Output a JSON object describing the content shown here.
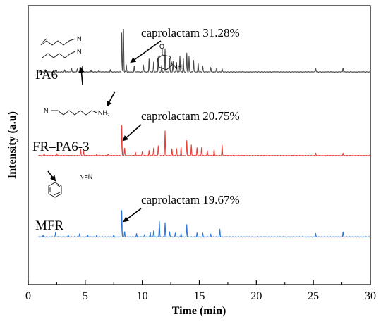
{
  "chart_data": {
    "type": "line",
    "xlabel": "Time (min)",
    "ylabel": "Intensity (a.u)",
    "xlim": [
      0,
      30
    ],
    "xticks": [
      0,
      5,
      10,
      15,
      20,
      25,
      30
    ],
    "grid": false,
    "legend": "none",
    "series": [
      {
        "name": "PA6",
        "color": "#4a4a4a",
        "baseline_level": 0.82,
        "peaks": [
          {
            "x": 1.5,
            "h": 0.3
          },
          {
            "x": 2.4,
            "h": 0.25
          },
          {
            "x": 3.2,
            "h": 0.3
          },
          {
            "x": 3.8,
            "h": 0.55
          },
          {
            "x": 4.3,
            "h": 0.5
          },
          {
            "x": 4.55,
            "h": 0.8
          },
          {
            "x": 4.75,
            "h": 0.9
          },
          {
            "x": 5.5,
            "h": 0.25
          },
          {
            "x": 6.2,
            "h": 0.3
          },
          {
            "x": 7.2,
            "h": 0.35
          },
          {
            "x": 8.2,
            "h": 6.0
          },
          {
            "x": 8.35,
            "h": 7.1
          },
          {
            "x": 8.6,
            "h": 1.1
          },
          {
            "x": 9.3,
            "h": 0.9
          },
          {
            "x": 10.1,
            "h": 1.1
          },
          {
            "x": 10.6,
            "h": 2.0
          },
          {
            "x": 11.0,
            "h": 1.5
          },
          {
            "x": 11.4,
            "h": 2.3
          },
          {
            "x": 11.7,
            "h": 1.0
          },
          {
            "x": 12.0,
            "h": 3.5
          },
          {
            "x": 12.4,
            "h": 2.0
          },
          {
            "x": 12.7,
            "h": 1.6
          },
          {
            "x": 13.0,
            "h": 1.5
          },
          {
            "x": 13.3,
            "h": 2.4
          },
          {
            "x": 13.6,
            "h": 2.0
          },
          {
            "x": 13.9,
            "h": 2.9
          },
          {
            "x": 14.1,
            "h": 2.3
          },
          {
            "x": 14.5,
            "h": 1.8
          },
          {
            "x": 14.9,
            "h": 1.3
          },
          {
            "x": 15.3,
            "h": 0.9
          },
          {
            "x": 16.0,
            "h": 0.7
          },
          {
            "x": 16.5,
            "h": 0.5
          },
          {
            "x": 17.0,
            "h": 0.5
          },
          {
            "x": 25.2,
            "h": 0.6
          },
          {
            "x": 27.6,
            "h": 0.6
          }
        ]
      },
      {
        "name": "FR–PA6-3",
        "color": "#e8403a",
        "baseline_level": 0.45,
        "peaks": [
          {
            "x": 1.4,
            "h": 0.25
          },
          {
            "x": 2.5,
            "h": 0.3
          },
          {
            "x": 4.6,
            "h": 0.9
          },
          {
            "x": 4.85,
            "h": 0.7
          },
          {
            "x": 6.0,
            "h": 0.2
          },
          {
            "x": 7.0,
            "h": 0.25
          },
          {
            "x": 8.2,
            "h": 4.6
          },
          {
            "x": 8.45,
            "h": 1.2
          },
          {
            "x": 9.4,
            "h": 0.5
          },
          {
            "x": 10.0,
            "h": 0.6
          },
          {
            "x": 10.6,
            "h": 0.8
          },
          {
            "x": 11.0,
            "h": 1.2
          },
          {
            "x": 11.4,
            "h": 1.5
          },
          {
            "x": 12.0,
            "h": 3.8
          },
          {
            "x": 12.6,
            "h": 1.0
          },
          {
            "x": 13.0,
            "h": 1.1
          },
          {
            "x": 13.4,
            "h": 1.3
          },
          {
            "x": 13.9,
            "h": 2.3
          },
          {
            "x": 14.3,
            "h": 1.6
          },
          {
            "x": 14.8,
            "h": 1.2
          },
          {
            "x": 15.2,
            "h": 1.3
          },
          {
            "x": 15.7,
            "h": 0.8
          },
          {
            "x": 16.3,
            "h": 0.9
          },
          {
            "x": 17.0,
            "h": 1.6
          },
          {
            "x": 25.2,
            "h": 0.4
          },
          {
            "x": 27.6,
            "h": 0.4
          }
        ]
      },
      {
        "name": "MFR",
        "color": "#2f79d6",
        "baseline_level": 0.08,
        "peaks": [
          {
            "x": 1.3,
            "h": 0.25
          },
          {
            "x": 2.4,
            "h": 0.7
          },
          {
            "x": 3.5,
            "h": 0.3
          },
          {
            "x": 4.5,
            "h": 0.5
          },
          {
            "x": 5.2,
            "h": 0.3
          },
          {
            "x": 6.0,
            "h": 0.2
          },
          {
            "x": 7.5,
            "h": 0.3
          },
          {
            "x": 8.2,
            "h": 4.0
          },
          {
            "x": 8.45,
            "h": 0.8
          },
          {
            "x": 9.5,
            "h": 0.5
          },
          {
            "x": 10.2,
            "h": 0.4
          },
          {
            "x": 10.7,
            "h": 0.7
          },
          {
            "x": 11.0,
            "h": 1.0
          },
          {
            "x": 11.5,
            "h": 2.4
          },
          {
            "x": 12.0,
            "h": 2.2
          },
          {
            "x": 12.4,
            "h": 0.8
          },
          {
            "x": 12.9,
            "h": 0.6
          },
          {
            "x": 13.4,
            "h": 0.5
          },
          {
            "x": 13.9,
            "h": 1.9
          },
          {
            "x": 14.8,
            "h": 0.6
          },
          {
            "x": 15.3,
            "h": 0.6
          },
          {
            "x": 16.0,
            "h": 0.4
          },
          {
            "x": 16.8,
            "h": 1.2
          },
          {
            "x": 25.2,
            "h": 0.5
          },
          {
            "x": 27.6,
            "h": 0.8
          }
        ]
      }
    ],
    "annotations": [
      {
        "text": "caprolactam 31.28%",
        "series": "PA6"
      },
      {
        "text": "caprolactam 20.75%",
        "series": "FR–PA6-3"
      },
      {
        "text": "caprolactam  19.67%",
        "series": "MFR"
      }
    ],
    "structure_labels": {
      "nitrile_1": "N",
      "nitrile_2": "N",
      "lactam_o": "O",
      "lactam_nh": "NH",
      "amine_n": "N",
      "amine_nh2": "NH",
      "amine_sub": "2",
      "acrylonitrile": "∿≡N"
    }
  }
}
